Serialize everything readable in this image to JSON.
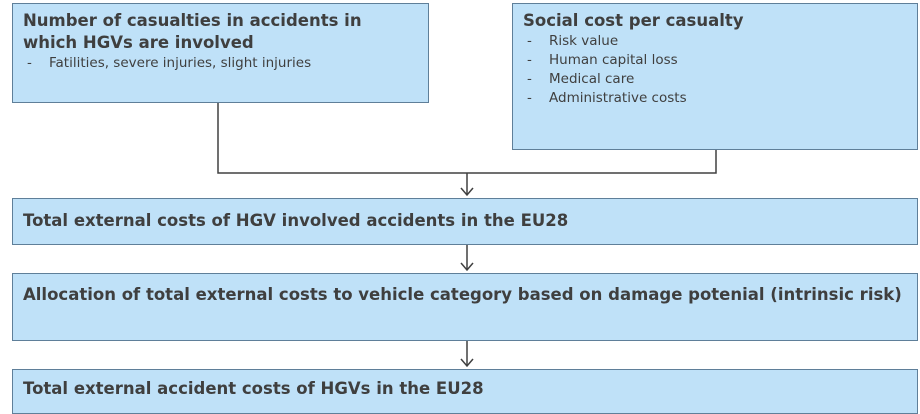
{
  "nodes": [
    {
      "label": "Number of casualties in accidents in which HGVs are involved",
      "items": [
        "Fatilities, severe injuries, slight injuries"
      ]
    },
    {
      "label": "Social cost per casualty",
      "items": [
        "Risk value",
        "Human capital loss",
        "Medical care",
        "Administrative costs"
      ]
    },
    {
      "label": "Total external costs of HGV involved accidents in the EU28"
    },
    {
      "label": "Allocation of total external costs to vehicle category based on damage potenial (intrinsic risk)"
    },
    {
      "label": "Total external accident costs of HGVs in the EU28"
    }
  ]
}
